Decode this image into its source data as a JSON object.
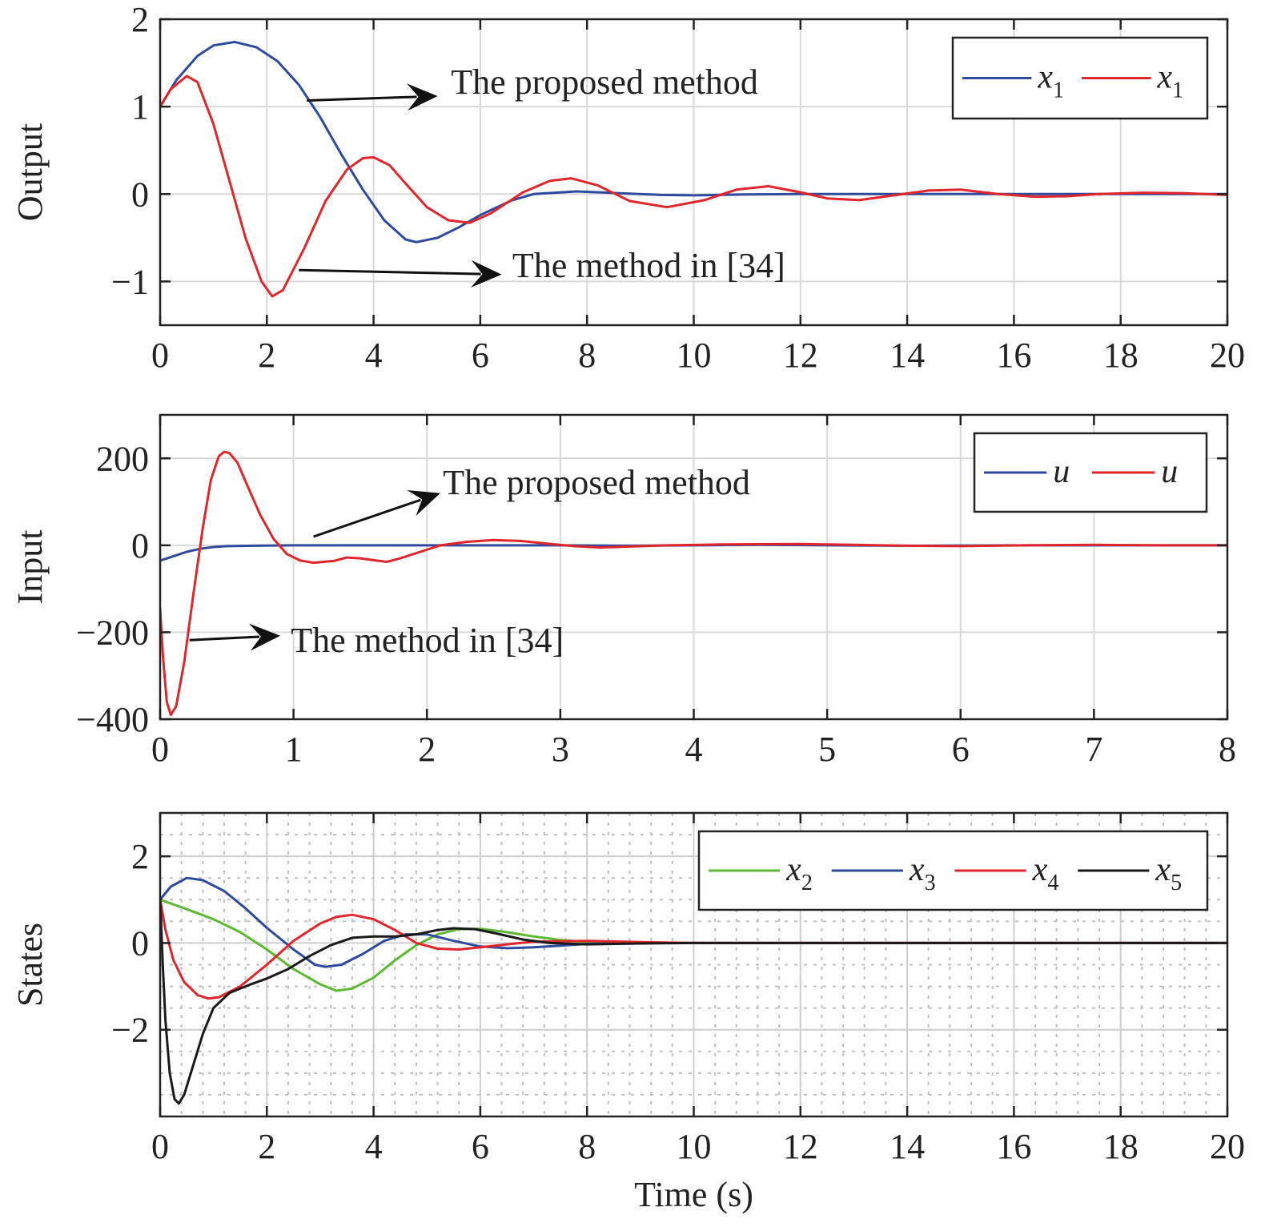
{
  "chart_data": [
    {
      "id": "output",
      "type": "line",
      "ylabel": "Output",
      "xlabel": "",
      "xlim": [
        0,
        20
      ],
      "ylim": [
        -1.5,
        2
      ],
      "xticks": [
        0,
        2,
        4,
        6,
        8,
        10,
        12,
        14,
        16,
        18,
        20
      ],
      "yticks": [
        -1,
        0,
        1,
        2
      ],
      "ytick_labels": [
        "−1",
        "0",
        "1",
        "2"
      ],
      "grid": "solid-major",
      "legend_position": "top-right",
      "legend": [
        {
          "var": "x",
          "sub": "1",
          "color": "#2E4A9E"
        },
        {
          "var": "x",
          "sub": "1",
          "color": "#E0262B"
        }
      ],
      "annotations": [
        {
          "text": "The proposed method",
          "text_at": [
            5.45,
            1.15
          ],
          "arrow_from": [
            2.75,
            1.07
          ],
          "arrow_to": [
            5.2,
            1.12
          ]
        },
        {
          "text": "The method in [34]",
          "text_at": [
            6.6,
            -0.95
          ],
          "arrow_from": [
            2.6,
            -0.87
          ],
          "arrow_to": [
            6.4,
            -0.92
          ]
        }
      ],
      "series": [
        {
          "color": "#2E4A9E",
          "points": [
            [
              0,
              1
            ],
            [
              0.3,
              1.3
            ],
            [
              0.7,
              1.58
            ],
            [
              1.0,
              1.7
            ],
            [
              1.4,
              1.74
            ],
            [
              1.8,
              1.68
            ],
            [
              2.2,
              1.52
            ],
            [
              2.6,
              1.25
            ],
            [
              3.0,
              0.88
            ],
            [
              3.4,
              0.45
            ],
            [
              3.8,
              0.05
            ],
            [
              4.2,
              -0.3
            ],
            [
              4.6,
              -0.52
            ],
            [
              4.8,
              -0.55
            ],
            [
              5.2,
              -0.5
            ],
            [
              5.6,
              -0.38
            ],
            [
              6.0,
              -0.24
            ],
            [
              6.6,
              -0.07
            ],
            [
              7.0,
              0.0
            ],
            [
              7.8,
              0.03
            ],
            [
              8.6,
              0.01
            ],
            [
              9.4,
              -0.01
            ],
            [
              10.0,
              -0.015
            ],
            [
              11.0,
              -0.005
            ],
            [
              12.0,
              0.0
            ],
            [
              20.0,
              0.0
            ]
          ]
        },
        {
          "color": "#E0262B",
          "points": [
            [
              0,
              1
            ],
            [
              0.2,
              1.2
            ],
            [
              0.5,
              1.35
            ],
            [
              0.7,
              1.28
            ],
            [
              1.0,
              0.8
            ],
            [
              1.3,
              0.15
            ],
            [
              1.6,
              -0.5
            ],
            [
              1.9,
              -1.0
            ],
            [
              2.1,
              -1.17
            ],
            [
              2.3,
              -1.1
            ],
            [
              2.7,
              -0.62
            ],
            [
              3.1,
              -0.08
            ],
            [
              3.5,
              0.28
            ],
            [
              3.8,
              0.41
            ],
            [
              4.0,
              0.42
            ],
            [
              4.3,
              0.33
            ],
            [
              4.6,
              0.12
            ],
            [
              5.0,
              -0.15
            ],
            [
              5.4,
              -0.3
            ],
            [
              5.8,
              -0.33
            ],
            [
              6.2,
              -0.22
            ],
            [
              6.8,
              0.02
            ],
            [
              7.3,
              0.15
            ],
            [
              7.7,
              0.18
            ],
            [
              8.2,
              0.1
            ],
            [
              8.8,
              -0.08
            ],
            [
              9.5,
              -0.15
            ],
            [
              10.2,
              -0.07
            ],
            [
              10.8,
              0.05
            ],
            [
              11.4,
              0.09
            ],
            [
              12.0,
              0.02
            ],
            [
              12.5,
              -0.05
            ],
            [
              13.1,
              -0.07
            ],
            [
              13.8,
              -0.01
            ],
            [
              14.4,
              0.04
            ],
            [
              15.0,
              0.05
            ],
            [
              15.7,
              0.0
            ],
            [
              16.4,
              -0.03
            ],
            [
              17.0,
              -0.025
            ],
            [
              17.6,
              0.0
            ],
            [
              18.4,
              0.015
            ],
            [
              19.2,
              0.01
            ],
            [
              20.0,
              -0.01
            ]
          ]
        }
      ]
    },
    {
      "id": "input",
      "type": "line",
      "ylabel": "Input",
      "xlabel": "",
      "xlim": [
        0,
        8
      ],
      "ylim": [
        -400,
        300
      ],
      "xticks": [
        0,
        1,
        2,
        3,
        4,
        5,
        6,
        7,
        8
      ],
      "yticks": [
        -400,
        -200,
        0,
        200
      ],
      "ytick_labels": [
        "−400",
        "−200",
        "0",
        "200"
      ],
      "grid": "solid-major",
      "legend_position": "top-right",
      "legend": [
        {
          "var": "u",
          "sub": "",
          "color": "#2E4A9E"
        },
        {
          "var": "u",
          "sub": "",
          "color": "#E0262B"
        }
      ],
      "annotations": [
        {
          "text": "The proposed method",
          "text_at": [
            2.12,
            118
          ],
          "arrow_from": [
            1.15,
            20
          ],
          "arrow_to": [
            2.1,
            120
          ]
        },
        {
          "text": "The method in [34]",
          "text_at": [
            0.98,
            -245
          ],
          "arrow_from": [
            0.22,
            -218
          ],
          "arrow_to": [
            0.9,
            -208
          ]
        }
      ],
      "series": [
        {
          "color": "#2E4A9E",
          "points": [
            [
              0,
              -35
            ],
            [
              0.1,
              -25
            ],
            [
              0.2,
              -15
            ],
            [
              0.3,
              -8
            ],
            [
              0.4,
              -4
            ],
            [
              0.5,
              -2
            ],
            [
              0.7,
              -1
            ],
            [
              1.0,
              0
            ],
            [
              3.0,
              0
            ],
            [
              3.5,
              -1
            ],
            [
              4.5,
              1
            ],
            [
              5.5,
              -1
            ],
            [
              6.5,
              0
            ],
            [
              8.0,
              0
            ]
          ]
        },
        {
          "color": "#E0262B",
          "points": [
            [
              0,
              -145
            ],
            [
              0.02,
              -250
            ],
            [
              0.05,
              -360
            ],
            [
              0.08,
              -390
            ],
            [
              0.12,
              -370
            ],
            [
              0.18,
              -270
            ],
            [
              0.25,
              -110
            ],
            [
              0.32,
              40
            ],
            [
              0.38,
              150
            ],
            [
              0.44,
              205
            ],
            [
              0.48,
              215
            ],
            [
              0.52,
              212
            ],
            [
              0.58,
              190
            ],
            [
              0.65,
              140
            ],
            [
              0.75,
              70
            ],
            [
              0.85,
              15
            ],
            [
              0.95,
              -20
            ],
            [
              1.05,
              -35
            ],
            [
              1.15,
              -40
            ],
            [
              1.3,
              -36
            ],
            [
              1.4,
              -28
            ],
            [
              1.5,
              -30
            ],
            [
              1.62,
              -35
            ],
            [
              1.7,
              -38
            ],
            [
              1.8,
              -30
            ],
            [
              1.95,
              -15
            ],
            [
              2.1,
              0
            ],
            [
              2.3,
              8
            ],
            [
              2.5,
              12
            ],
            [
              2.7,
              10
            ],
            [
              2.9,
              4
            ],
            [
              3.1,
              -2
            ],
            [
              3.3,
              -5
            ],
            [
              3.5,
              -3
            ],
            [
              3.8,
              0
            ],
            [
              4.2,
              2
            ],
            [
              4.8,
              3
            ],
            [
              5.2,
              1
            ],
            [
              5.6,
              -1
            ],
            [
              6.0,
              -2
            ],
            [
              6.5,
              0
            ],
            [
              7.0,
              1
            ],
            [
              7.5,
              0
            ],
            [
              8.0,
              0
            ]
          ]
        }
      ]
    },
    {
      "id": "states",
      "type": "line",
      "ylabel": "States",
      "xlabel": "Time (s)",
      "xlim": [
        0,
        20
      ],
      "ylim": [
        -4,
        3
      ],
      "xticks": [
        0,
        2,
        4,
        6,
        8,
        10,
        12,
        14,
        16,
        18,
        20
      ],
      "yticks": [
        -2,
        0,
        2
      ],
      "ytick_labels": [
        "−2",
        "0",
        "2"
      ],
      "grid": "dotted-minor",
      "legend_position": "top-right",
      "legend": [
        {
          "var": "x",
          "sub": "2",
          "color": "#5DB833"
        },
        {
          "var": "x",
          "sub": "3",
          "color": "#2E4A9E"
        },
        {
          "var": "x",
          "sub": "4",
          "color": "#E0262B"
        },
        {
          "var": "x",
          "sub": "5",
          "color": "#1A1A1A"
        }
      ],
      "annotations": [],
      "series": [
        {
          "color": "#5DB833",
          "points": [
            [
              0,
              1
            ],
            [
              0.5,
              0.78
            ],
            [
              1.0,
              0.55
            ],
            [
              1.5,
              0.25
            ],
            [
              2.0,
              -0.15
            ],
            [
              2.5,
              -0.6
            ],
            [
              3.0,
              -0.95
            ],
            [
              3.3,
              -1.1
            ],
            [
              3.6,
              -1.05
            ],
            [
              4.0,
              -0.8
            ],
            [
              4.4,
              -0.4
            ],
            [
              4.8,
              -0.05
            ],
            [
              5.2,
              0.2
            ],
            [
              5.6,
              0.32
            ],
            [
              6.0,
              0.33
            ],
            [
              6.5,
              0.25
            ],
            [
              7.0,
              0.15
            ],
            [
              7.5,
              0.07
            ],
            [
              8.0,
              0.02
            ],
            [
              9.0,
              0.0
            ],
            [
              20.0,
              0.0
            ]
          ]
        },
        {
          "color": "#2E4A9E",
          "points": [
            [
              0,
              1
            ],
            [
              0.2,
              1.3
            ],
            [
              0.5,
              1.5
            ],
            [
              0.8,
              1.45
            ],
            [
              1.2,
              1.2
            ],
            [
              1.6,
              0.8
            ],
            [
              2.0,
              0.35
            ],
            [
              2.5,
              -0.15
            ],
            [
              2.9,
              -0.5
            ],
            [
              3.1,
              -0.55
            ],
            [
              3.4,
              -0.5
            ],
            [
              3.8,
              -0.25
            ],
            [
              4.2,
              0.05
            ],
            [
              4.6,
              0.2
            ],
            [
              5.0,
              0.2
            ],
            [
              5.5,
              0.05
            ],
            [
              6.0,
              -0.08
            ],
            [
              6.5,
              -0.12
            ],
            [
              7.0,
              -0.1
            ],
            [
              7.5,
              -0.06
            ],
            [
              8.0,
              -0.02
            ],
            [
              9.0,
              0.0
            ],
            [
              20.0,
              0.0
            ]
          ]
        },
        {
          "color": "#E0262B",
          "points": [
            [
              0,
              1
            ],
            [
              0.1,
              0.3
            ],
            [
              0.25,
              -0.4
            ],
            [
              0.45,
              -0.9
            ],
            [
              0.7,
              -1.2
            ],
            [
              0.9,
              -1.28
            ],
            [
              1.1,
              -1.25
            ],
            [
              1.5,
              -1.0
            ],
            [
              2.0,
              -0.5
            ],
            [
              2.5,
              0.05
            ],
            [
              3.0,
              0.45
            ],
            [
              3.3,
              0.6
            ],
            [
              3.6,
              0.65
            ],
            [
              4.0,
              0.55
            ],
            [
              4.4,
              0.3
            ],
            [
              4.8,
              0.0
            ],
            [
              5.2,
              -0.13
            ],
            [
              5.6,
              -0.15
            ],
            [
              6.0,
              -0.1
            ],
            [
              6.5,
              -0.03
            ],
            [
              7.0,
              0.03
            ],
            [
              8.0,
              0.05
            ],
            [
              9.0,
              0.02
            ],
            [
              10.0,
              0.0
            ],
            [
              20.0,
              0.0
            ]
          ]
        },
        {
          "color": "#1A1A1A",
          "points": [
            [
              0,
              1
            ],
            [
              0.05,
              -0.5
            ],
            [
              0.1,
              -1.8
            ],
            [
              0.18,
              -3.0
            ],
            [
              0.27,
              -3.6
            ],
            [
              0.35,
              -3.7
            ],
            [
              0.45,
              -3.5
            ],
            [
              0.6,
              -2.9
            ],
            [
              0.8,
              -2.1
            ],
            [
              1.0,
              -1.5
            ],
            [
              1.3,
              -1.15
            ],
            [
              1.7,
              -0.95
            ],
            [
              2.0,
              -0.82
            ],
            [
              2.4,
              -0.6
            ],
            [
              2.8,
              -0.3
            ],
            [
              3.2,
              -0.05
            ],
            [
              3.6,
              0.12
            ],
            [
              4.0,
              0.15
            ],
            [
              4.4,
              0.15
            ],
            [
              4.8,
              0.2
            ],
            [
              5.2,
              0.3
            ],
            [
              5.5,
              0.34
            ],
            [
              5.9,
              0.32
            ],
            [
              6.3,
              0.22
            ],
            [
              6.8,
              0.08
            ],
            [
              7.3,
              0.0
            ],
            [
              8.0,
              -0.03
            ],
            [
              9.0,
              -0.01
            ],
            [
              10.0,
              0.0
            ],
            [
              20.0,
              0.0
            ]
          ]
        }
      ]
    }
  ]
}
